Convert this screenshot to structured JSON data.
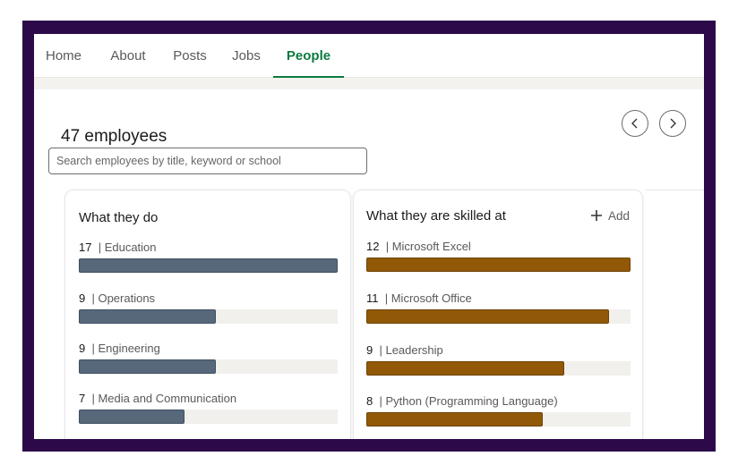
{
  "nav": {
    "tabs": [
      {
        "label": "Home",
        "active": false
      },
      {
        "label": "About",
        "active": false
      },
      {
        "label": "Posts",
        "active": false
      },
      {
        "label": "Jobs",
        "active": false
      },
      {
        "label": "People",
        "active": true
      }
    ]
  },
  "people": {
    "count_label": "47 employees",
    "search_placeholder": "Search employees by title, keyword or school",
    "prev_icon": "chevron-left-icon",
    "next_icon": "chevron-right-icon"
  },
  "what_they_do": {
    "title": "What they do",
    "bar_color": "#56687a",
    "items": [
      {
        "count": "17",
        "label": "| Education",
        "fraction": 1.0
      },
      {
        "count": "9",
        "label": "| Operations",
        "fraction": 0.53
      },
      {
        "count": "9",
        "label": "| Engineering",
        "fraction": 0.53
      },
      {
        "count": "7",
        "label": "| Media and Communication",
        "fraction": 0.41
      }
    ]
  },
  "skilled_at": {
    "title": "What they are skilled at",
    "add_label": "Add",
    "add_icon": "plus-icon",
    "bar_color": "#915907",
    "items": [
      {
        "count": "12",
        "label": "| Microsoft Excel",
        "fraction": 1.0
      },
      {
        "count": "11",
        "label": "| Microsoft Office",
        "fraction": 0.917
      },
      {
        "count": "9",
        "label": "| Leadership",
        "fraction": 0.75
      },
      {
        "count": "8",
        "label": "| Python (Programming Language)",
        "fraction": 0.667
      }
    ]
  },
  "colors": {
    "frame": "#2c0a4a",
    "accent": "#0a7a3f"
  }
}
